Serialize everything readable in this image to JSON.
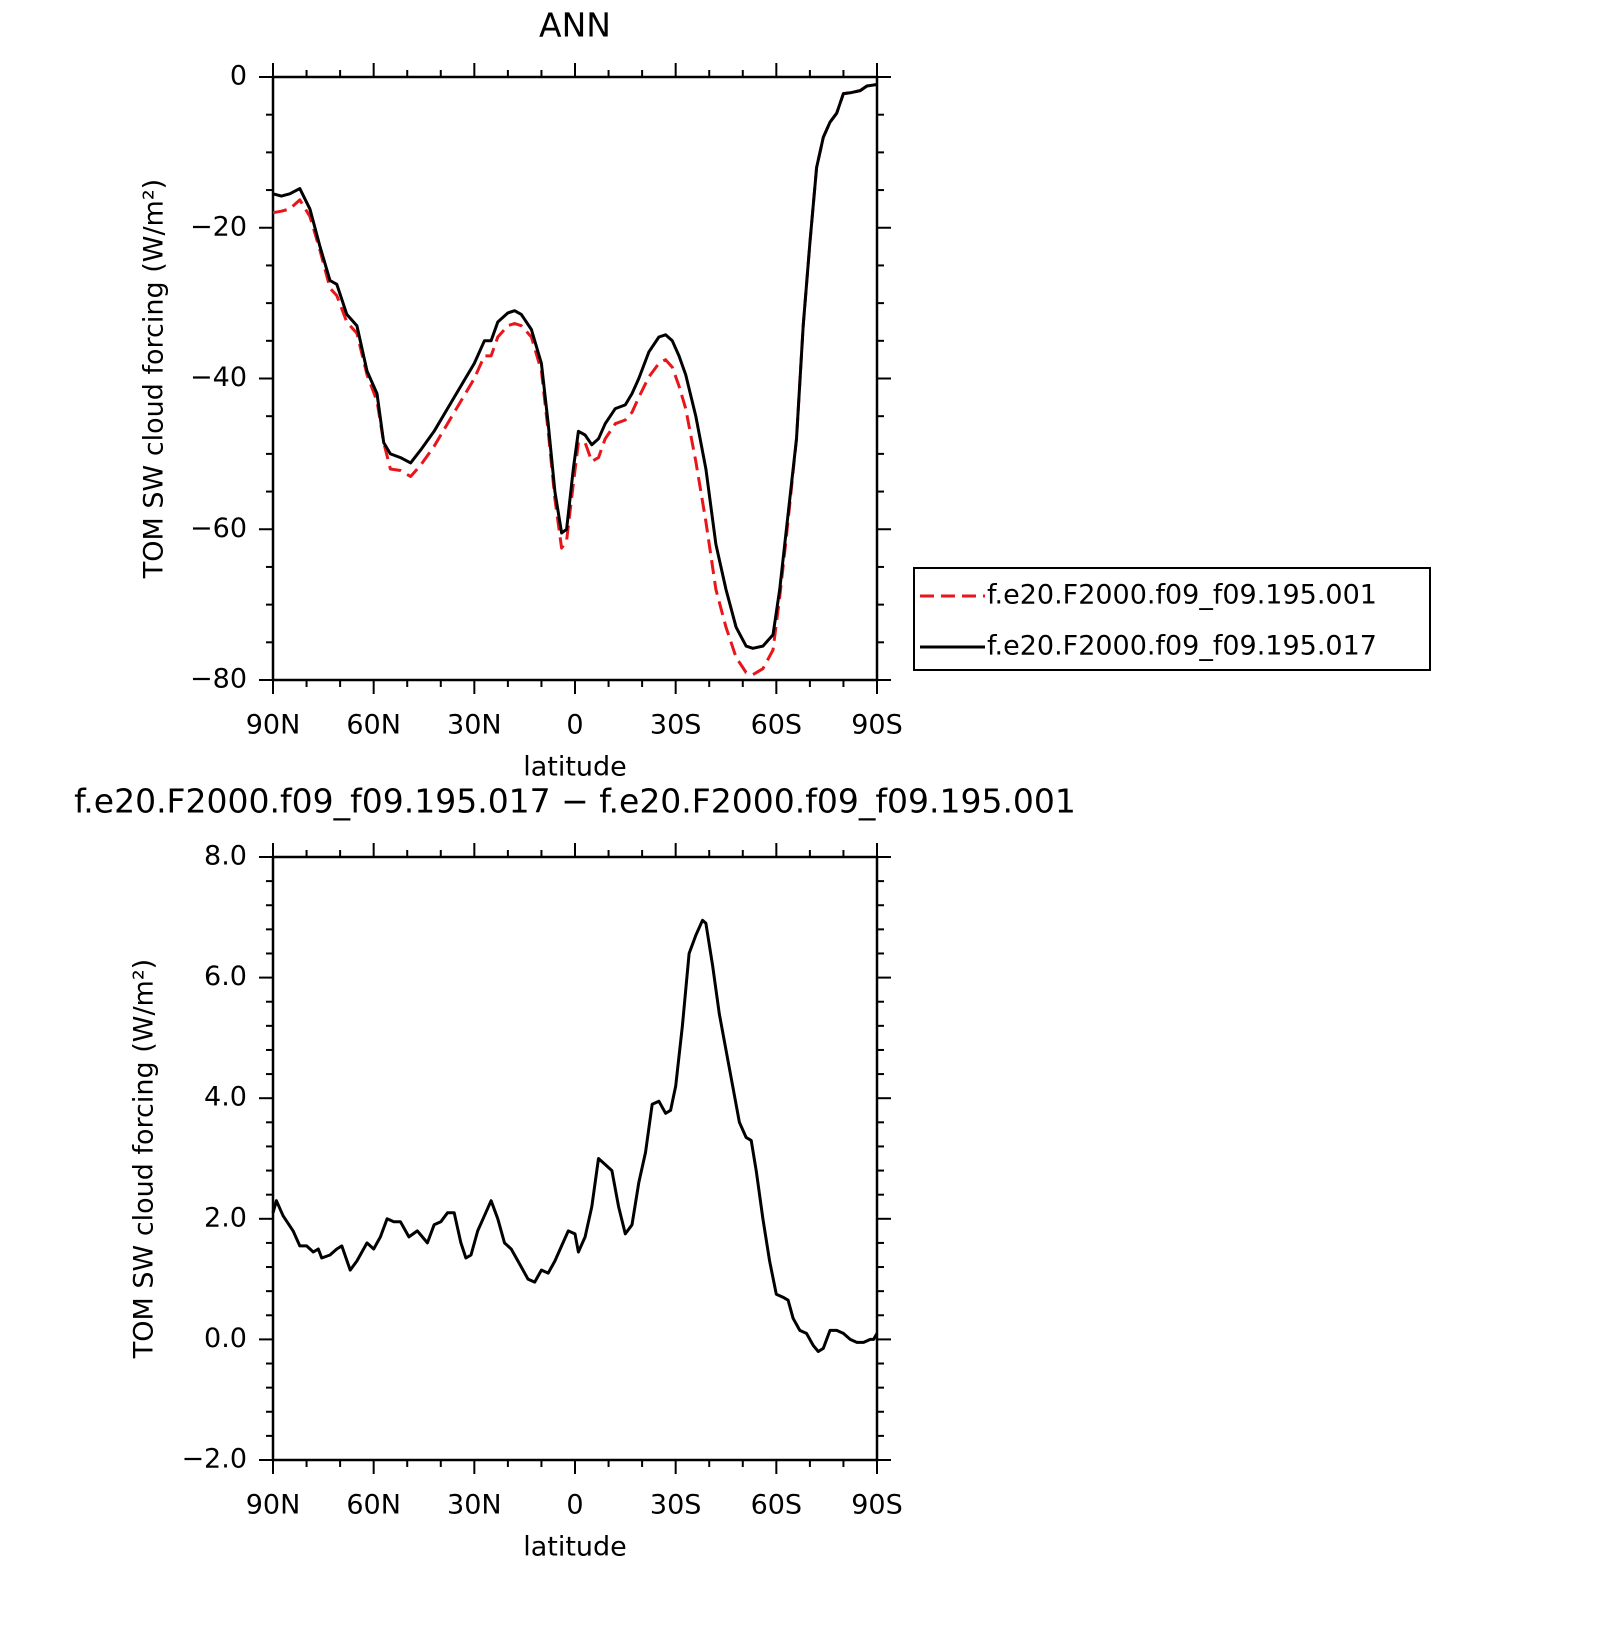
{
  "chart_data": [
    {
      "type": "line",
      "title": "ANN",
      "xlabel": "latitude",
      "ylabel": "TOM SW cloud forcing (W/m²)",
      "x": [
        90,
        87.5,
        85,
        82,
        79,
        76,
        73,
        71,
        68,
        65,
        62,
        59,
        57,
        55,
        52,
        49,
        46,
        42,
        38,
        34,
        30,
        27,
        25,
        23,
        20,
        18,
        16,
        13,
        10,
        8,
        6,
        4,
        2.5,
        0.5,
        -1,
        -3,
        -5,
        -7,
        -9,
        -12,
        -15,
        -17,
        -19,
        -22,
        -25,
        -27,
        -29,
        -31,
        -33,
        -36,
        -39,
        -42,
        -45,
        -48,
        -51,
        -53,
        -56,
        -59,
        -61,
        -63,
        -66,
        -68,
        -70,
        -72,
        -74,
        -76,
        -78,
        -80,
        -82,
        -85,
        -87,
        -90
      ],
      "series": [
        {
          "name": "f.e20.F2000.f09_f09.195.001",
          "color": "#e8161b",
          "linestyle": "dashed",
          "values": [
            -18,
            -17.8,
            -17.5,
            -16.3,
            -18.5,
            -23,
            -28,
            -29,
            -32.5,
            -34,
            -39.5,
            -43,
            -48.5,
            -52,
            -52.2,
            -53,
            -51.5,
            -49,
            -46,
            -43,
            -40,
            -37,
            -37,
            -34.5,
            -33,
            -32.7,
            -33,
            -34.5,
            -39,
            -47,
            -56,
            -62.5,
            -61.5,
            -54,
            -48.5,
            -48.5,
            -51,
            -50.5,
            -48,
            -46,
            -45.5,
            -44.5,
            -42.5,
            -39.8,
            -38,
            -37.5,
            -38.5,
            -41,
            -44,
            -51,
            -59,
            -68,
            -73,
            -77,
            -79,
            -79.3,
            -78.5,
            -76,
            -69,
            -61,
            -48,
            -33,
            -22,
            -12,
            -8,
            -6,
            -4.8,
            -2.2,
            -2.1,
            -1.8,
            -1.2,
            -1.0
          ]
        },
        {
          "name": "f.e20.F2000.f09_f09.195.017",
          "color": "#000000",
          "linestyle": "solid",
          "values": [
            -15.5,
            -15.8,
            -15.5,
            -14.8,
            -17.5,
            -22.5,
            -27,
            -27.5,
            -31.5,
            -33,
            -39,
            -42,
            -48.5,
            -50,
            -50.5,
            -51.2,
            -49.5,
            -47,
            -44,
            -41,
            -38,
            -35,
            -35,
            -32.5,
            -31.3,
            -31,
            -31.5,
            -33.5,
            -38,
            -46,
            -55,
            -60.5,
            -60,
            -52,
            -47,
            -47.5,
            -48.8,
            -48,
            -46,
            -44,
            -43.5,
            -42,
            -40,
            -36.5,
            -34.5,
            -34.2,
            -35,
            -37,
            -39.5,
            -45,
            -52,
            -62,
            -68,
            -73,
            -75.5,
            -75.8,
            -75.5,
            -74,
            -68,
            -60,
            -48,
            -33,
            -22,
            -12,
            -8,
            -6,
            -4.8,
            -2.2,
            -2.1,
            -1.8,
            -1.2,
            -1.0
          ]
        }
      ],
      "xlim": [
        90,
        -90
      ],
      "xticks": [
        {
          "value": 90,
          "label": "90N"
        },
        {
          "value": 60,
          "label": "60N"
        },
        {
          "value": 30,
          "label": "30N"
        },
        0,
        {
          "value": -30,
          "label": "30S"
        },
        {
          "value": -60,
          "label": "60S"
        },
        {
          "value": -90,
          "label": "90S"
        }
      ],
      "ylim": [
        -80,
        0
      ],
      "yticks": [
        0,
        {
          "value": -20,
          "label": "−20"
        },
        {
          "value": -40,
          "label": "−40"
        },
        {
          "value": -60,
          "label": "−60"
        },
        {
          "value": -80,
          "label": "−80"
        }
      ],
      "legend": "right"
    },
    {
      "type": "line",
      "title": "f.e20.F2000.f09_f09.195.017 − f.e20.F2000.f09_f09.195.001",
      "xlabel": "latitude",
      "ylabel": "TOM SW cloud forcing (W/m²)",
      "x": [
        90,
        89,
        87,
        84,
        82,
        80,
        78,
        76.5,
        75.5,
        73,
        71,
        69.5,
        67,
        65,
        62,
        60,
        58,
        56,
        54,
        52,
        49.5,
        47,
        44,
        42,
        40,
        38,
        36,
        34,
        32.5,
        31,
        29,
        27,
        25,
        23,
        21,
        19,
        16,
        14,
        12,
        10,
        8,
        6,
        4,
        2,
        0,
        -1,
        -3,
        -5,
        -7,
        -9,
        -11,
        -13,
        -15,
        -17,
        -19,
        -21,
        -23,
        -25,
        -27,
        -28.5,
        -30,
        -32,
        -34,
        -36,
        -38,
        -39,
        -41,
        -43,
        -45,
        -47,
        -49,
        -51,
        -52.5,
        -54,
        -56,
        -58,
        -60,
        -62,
        -63.5,
        -65,
        -67,
        -69,
        -71,
        -72.5,
        -74,
        -76,
        -78,
        -80,
        -82,
        -84,
        -86,
        -88,
        -89,
        -90
      ],
      "series": [
        {
          "color": "#000000",
          "linestyle": "solid",
          "values": [
            2.1,
            2.3,
            2.05,
            1.8,
            1.55,
            1.55,
            1.45,
            1.5,
            1.35,
            1.4,
            1.5,
            1.55,
            1.15,
            1.3,
            1.6,
            1.5,
            1.7,
            2.0,
            1.95,
            1.95,
            1.7,
            1.8,
            1.6,
            1.9,
            1.95,
            2.1,
            2.1,
            1.6,
            1.35,
            1.4,
            1.8,
            2.05,
            2.3,
            2.0,
            1.6,
            1.5,
            1.2,
            1.0,
            0.95,
            1.15,
            1.1,
            1.3,
            1.55,
            1.8,
            1.75,
            1.45,
            1.7,
            2.2,
            3.0,
            2.9,
            2.8,
            2.2,
            1.75,
            1.9,
            2.6,
            3.1,
            3.9,
            3.95,
            3.75,
            3.8,
            4.2,
            5.2,
            6.4,
            6.7,
            6.95,
            6.9,
            6.2,
            5.4,
            4.8,
            4.2,
            3.6,
            3.35,
            3.3,
            2.8,
            2.0,
            1.3,
            0.75,
            0.7,
            0.65,
            0.35,
            0.15,
            0.1,
            -0.1,
            -0.2,
            -0.15,
            0.15,
            0.15,
            0.1,
            0.0,
            -0.05,
            -0.05,
            0.0,
            0.0,
            0.1
          ]
        }
      ],
      "xlim": [
        90,
        -90
      ],
      "xticks": [
        {
          "value": 90,
          "label": "90N"
        },
        {
          "value": 60,
          "label": "60N"
        },
        {
          "value": 30,
          "label": "30N"
        },
        0,
        {
          "value": -30,
          "label": "30S"
        },
        {
          "value": -60,
          "label": "60S"
        },
        {
          "value": -90,
          "label": "90S"
        }
      ],
      "ylim": [
        -2,
        8
      ],
      "yticks": [
        {
          "value": 8,
          "label": "8.0"
        },
        {
          "value": 6,
          "label": "6.0"
        },
        {
          "value": 4,
          "label": "4.0"
        },
        {
          "value": 2,
          "label": "2.0"
        },
        {
          "value": 0,
          "label": "0.0"
        },
        {
          "value": -2,
          "label": "−2.0"
        }
      ]
    }
  ]
}
